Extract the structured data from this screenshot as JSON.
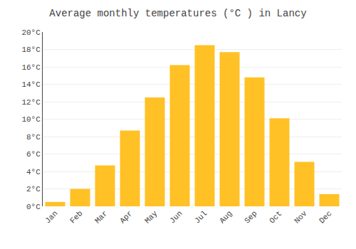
{
  "chart_data": {
    "type": "bar",
    "title": "Average monthly temperatures (°C ) in Lancy",
    "categories": [
      "Jan",
      "Feb",
      "Mar",
      "Apr",
      "May",
      "Jun",
      "Jul",
      "Aug",
      "Sep",
      "Oct",
      "Nov",
      "Dec"
    ],
    "values": [
      0.5,
      2.0,
      4.7,
      8.7,
      12.5,
      16.2,
      18.5,
      17.7,
      14.8,
      10.1,
      5.1,
      1.4
    ],
    "color": "#FFC125",
    "ylim": [
      0,
      20
    ],
    "yticks": [
      {
        "value": 0,
        "label": "0°C"
      },
      {
        "value": 2,
        "label": "2°C"
      },
      {
        "value": 4,
        "label": "4°C"
      },
      {
        "value": 6,
        "label": "6°C"
      },
      {
        "value": 8,
        "label": "8°C"
      },
      {
        "value": 10,
        "label": "10°C"
      },
      {
        "value": 12,
        "label": "12°C"
      },
      {
        "value": 14,
        "label": "14°C"
      },
      {
        "value": 16,
        "label": "16°C"
      },
      {
        "value": 18,
        "label": "18°C"
      },
      {
        "value": 20,
        "label": "20°C"
      }
    ],
    "grid": true
  }
}
